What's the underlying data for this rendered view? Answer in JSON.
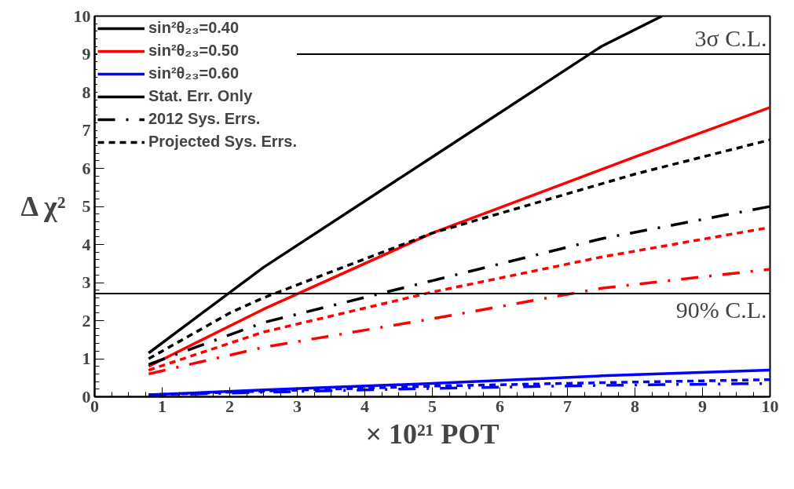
{
  "chart_data": {
    "type": "line",
    "xlabel": "× 10²¹ POT",
    "ylabel": "Δ χ²",
    "xlim": [
      0,
      10
    ],
    "ylim": [
      0,
      10
    ],
    "xticks": [
      0,
      1,
      2,
      3,
      4,
      5,
      6,
      7,
      8,
      9,
      10
    ],
    "yticks": [
      0,
      1,
      2,
      3,
      4,
      5,
      6,
      7,
      8,
      9,
      10
    ],
    "grid": false,
    "legend": "top left",
    "marker": "none",
    "annotations": [
      "Stat. Err. Only"
    ],
    "ref_lines": [
      {
        "axis": "y",
        "value": 9,
        "label": "3σ C.L.",
        "color": "#000000"
      },
      {
        "axis": "y",
        "value": 2.71,
        "label": "90% C.L.",
        "color": "#000000"
      }
    ],
    "series": [
      {
        "name": "sin²θ₂₃=0.40",
        "color": "#000000",
        "line_style": "solid",
        "x": [
          0.8,
          2.5,
          5,
          7.5,
          8.4
        ],
        "values": [
          1.15,
          3.4,
          6.3,
          9.2,
          10
        ]
      },
      {
        "name": "sin²θ₂₃=0.50",
        "color": "#ff0000",
        "line_style": "solid",
        "x": [
          0.8,
          2.5,
          5,
          8,
          10
        ],
        "values": [
          0.8,
          2.3,
          4.3,
          6.3,
          7.6
        ]
      },
      {
        "name": "sin²θ₂₃=0.60",
        "color": "#0000ff",
        "line_style": "solid",
        "x": [
          0.8,
          2.5,
          5,
          7.5,
          10
        ],
        "values": [
          0.05,
          0.18,
          0.35,
          0.55,
          0.7
        ]
      },
      {
        "name": "2012 Sys. Errs.",
        "color": "#000000",
        "line_style": "dashdot",
        "x": [
          0.8,
          2.5,
          5,
          7.5,
          10
        ],
        "values": [
          0.85,
          1.95,
          3.05,
          4.15,
          5.0
        ]
      },
      {
        "name": "Projected Sys. Errs.",
        "color": "#000000",
        "line_style": "dashed",
        "x": [
          0.8,
          2,
          2.5,
          5,
          8,
          10
        ],
        "values": [
          1.0,
          2.2,
          2.6,
          4.3,
          5.85,
          6.75
        ]
      },
      {
        "color": "#ff0000",
        "line_style": "dashdot",
        "x": [
          0.8,
          2.5,
          5,
          7.5,
          10
        ],
        "values": [
          0.6,
          1.3,
          2.05,
          2.85,
          3.35
        ]
      },
      {
        "color": "#ff0000",
        "line_style": "dashed",
        "x": [
          0.8,
          2.5,
          5,
          7.5,
          10
        ],
        "values": [
          0.7,
          1.7,
          2.75,
          3.67,
          4.45
        ]
      },
      {
        "color": "#0000ff",
        "line_style": "dashdot",
        "x": [
          0.8,
          2.5,
          5,
          7.5,
          10
        ],
        "values": [
          0.04,
          0.12,
          0.22,
          0.3,
          0.35
        ]
      },
      {
        "color": "#0000ff",
        "line_style": "dashed",
        "x": [
          0.8,
          2.5,
          5,
          7.5,
          10
        ],
        "values": [
          0.05,
          0.15,
          0.28,
          0.37,
          0.45
        ]
      }
    ]
  }
}
